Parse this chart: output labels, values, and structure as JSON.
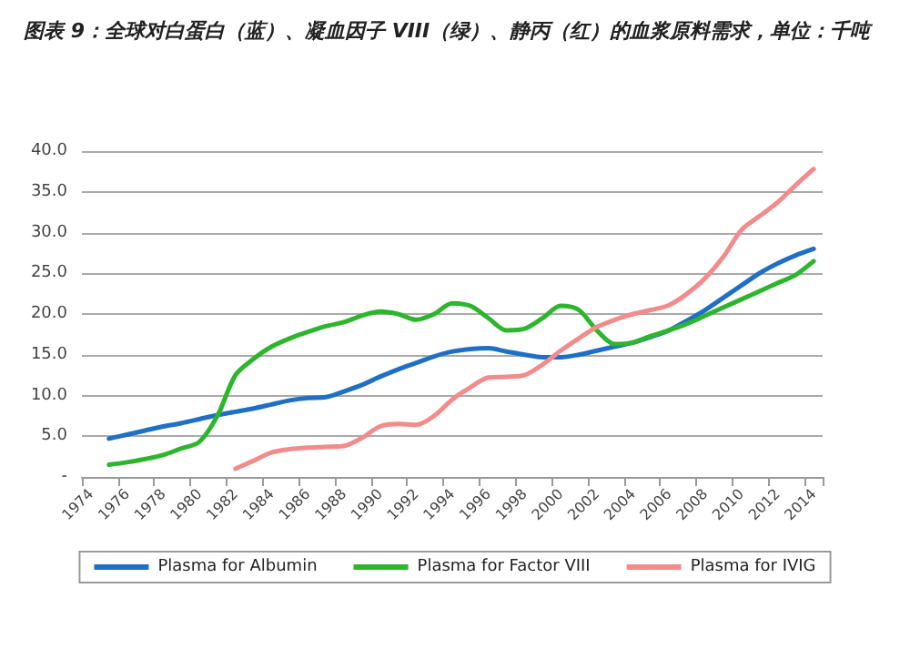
{
  "chart_data": {
    "type": "line",
    "title": "图表 9：全球对白蛋白（蓝）、凝血因子 VIII（绿）、静丙（红）的血浆原料需求，单位：千吨",
    "categories": [
      "1974",
      null,
      "1976",
      null,
      "1978",
      null,
      "1980",
      null,
      "1982",
      null,
      "1984",
      null,
      "1986",
      null,
      "1988",
      null,
      "1990",
      null,
      "1992",
      null,
      "1994",
      null,
      "1996",
      null,
      "1998",
      null,
      "2000",
      null,
      "2002",
      null,
      "2004",
      null,
      "2006",
      null,
      "2008",
      null,
      "2010",
      null,
      "2012",
      null,
      "2014"
    ],
    "series": [
      {
        "name": "Plasma for Albumin",
        "color": "#1f6fc5",
        "values": [
          null,
          4.7,
          5.2,
          5.7,
          6.2,
          6.6,
          7.1,
          7.6,
          8.0,
          8.4,
          8.9,
          9.4,
          9.7,
          9.8,
          10.5,
          11.3,
          12.3,
          13.2,
          14.0,
          14.8,
          15.4,
          15.7,
          15.8,
          15.4,
          15.0,
          14.7,
          14.7,
          15.0,
          15.5,
          16.0,
          16.5,
          17.2,
          18.0,
          19.2,
          20.5,
          22.0,
          23.5,
          25.0,
          26.2,
          27.2,
          28.0
        ]
      },
      {
        "name": "Plasma for Factor VIII",
        "color": "#2db52d",
        "values": [
          null,
          1.5,
          1.8,
          2.2,
          2.7,
          3.5,
          4.3,
          7.5,
          12.5,
          14.5,
          16.0,
          17.0,
          17.8,
          18.5,
          19.0,
          19.8,
          20.3,
          20.0,
          19.3,
          20.0,
          21.3,
          21.0,
          19.5,
          18.0,
          18.2,
          19.5,
          21.0,
          20.5,
          18.0,
          16.3,
          16.5,
          17.3,
          18.0,
          18.8,
          19.8,
          20.8,
          21.8,
          22.8,
          23.8,
          24.8,
          26.5
        ]
      },
      {
        "name": "Plasma for IVIG",
        "color": "#f28b8b",
        "values": [
          null,
          null,
          null,
          null,
          null,
          null,
          null,
          null,
          1.0,
          2.0,
          3.0,
          3.4,
          3.6,
          3.7,
          3.8,
          4.8,
          6.2,
          6.5,
          6.4,
          7.5,
          9.5,
          11.0,
          12.2,
          12.3,
          12.5,
          13.8,
          15.5,
          17.0,
          18.4,
          19.3,
          20.0,
          20.5,
          21.1,
          22.5,
          24.4,
          27.0,
          30.3,
          32.0,
          33.7,
          35.8,
          37.8
        ]
      }
    ],
    "ylim": [
      0,
      40
    ],
    "yticks": [
      {
        "value": 0,
        "label": "-"
      },
      {
        "value": 5,
        "label": "5.0"
      },
      {
        "value": 10,
        "label": "10.0"
      },
      {
        "value": 15,
        "label": "15.0"
      },
      {
        "value": 20,
        "label": "20.0"
      },
      {
        "value": 25,
        "label": "25.0"
      },
      {
        "value": 30,
        "label": "30.0"
      },
      {
        "value": 35,
        "label": "35.0"
      },
      {
        "value": 40,
        "label": "40.0"
      }
    ],
    "grid": "y",
    "legend": "bottom",
    "marker": "none",
    "line_style": "solid"
  }
}
